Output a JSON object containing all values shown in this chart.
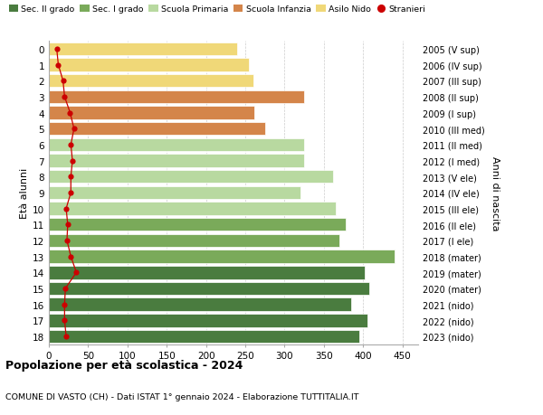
{
  "ages": [
    18,
    17,
    16,
    15,
    14,
    13,
    12,
    11,
    10,
    9,
    8,
    7,
    6,
    5,
    4,
    3,
    2,
    1,
    0
  ],
  "years_labels": [
    "2005 (V sup)",
    "2006 (IV sup)",
    "2007 (III sup)",
    "2008 (II sup)",
    "2009 (I sup)",
    "2010 (III med)",
    "2011 (II med)",
    "2012 (I med)",
    "2013 (V ele)",
    "2014 (IV ele)",
    "2015 (III ele)",
    "2016 (II ele)",
    "2017 (I ele)",
    "2018 (mater)",
    "2019 (mater)",
    "2020 (mater)",
    "2021 (nido)",
    "2022 (nido)",
    "2023 (nido)"
  ],
  "bar_values": [
    395,
    405,
    385,
    408,
    402,
    440,
    370,
    378,
    365,
    320,
    362,
    325,
    325,
    275,
    262,
    325,
    260,
    255,
    240
  ],
  "stranieri_values": [
    22,
    20,
    20,
    21,
    35,
    28,
    23,
    24,
    22,
    28,
    28,
    30,
    28,
    32,
    27,
    20,
    18,
    12,
    10
  ],
  "bar_colors": [
    "#4a7c3f",
    "#4a7c3f",
    "#4a7c3f",
    "#4a7c3f",
    "#4a7c3f",
    "#7aaa5a",
    "#7aaa5a",
    "#7aaa5a",
    "#b8d9a0",
    "#b8d9a0",
    "#b8d9a0",
    "#b8d9a0",
    "#b8d9a0",
    "#d4854a",
    "#d4854a",
    "#d4854a",
    "#f0d878",
    "#f0d878",
    "#f0d878"
  ],
  "legend_labels": [
    "Sec. II grado",
    "Sec. I grado",
    "Scuola Primaria",
    "Scuola Infanzia",
    "Asilo Nido",
    "Stranieri"
  ],
  "legend_colors": [
    "#4a7c3f",
    "#7aaa5a",
    "#b8d9a0",
    "#d4854a",
    "#f0d878",
    "#cc0000"
  ],
  "ylabel_left": "Età alunni",
  "ylabel_right": "Anni di nascita",
  "title": "Popolazione per età scolastica - 2024",
  "subtitle": "COMUNE DI VASTO (CH) - Dati ISTAT 1° gennaio 2024 - Elaborazione TUTTITALIA.IT",
  "xlim": [
    0,
    470
  ],
  "xticks": [
    0,
    50,
    100,
    150,
    200,
    250,
    300,
    350,
    400,
    450
  ],
  "background_color": "#ffffff",
  "grid_color": "#cccccc",
  "stranieri_color": "#cc0000"
}
